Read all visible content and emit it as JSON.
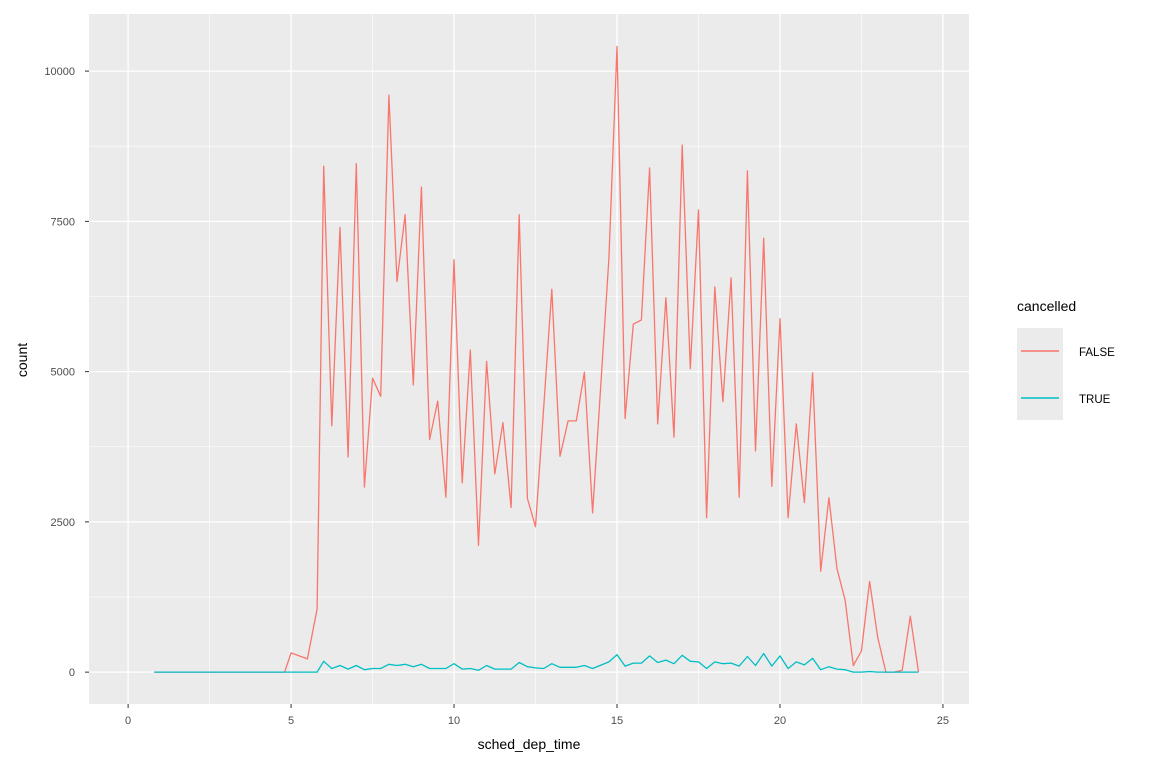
{
  "chart_data": {
    "type": "line",
    "xlabel": "sched_dep_time",
    "ylabel": "count",
    "xlim": [
      -1.2,
      25.8
    ],
    "ylim": [
      -530,
      10950
    ],
    "x_ticks": [
      0,
      5,
      10,
      15,
      20,
      25
    ],
    "x_tick_labels": [
      "0",
      "5",
      "10",
      "15",
      "20",
      "25"
    ],
    "y_ticks": [
      0,
      2500,
      5000,
      7500,
      10000
    ],
    "y_tick_labels": [
      "0",
      "2500",
      "5000",
      "7500",
      "10000"
    ],
    "grid": true,
    "legend": {
      "title": "cancelled",
      "position": "right"
    },
    "series": [
      {
        "name": "FALSE",
        "color": "#F8766D",
        "points": [
          [
            0.8,
            0
          ],
          [
            1.3,
            0
          ],
          [
            2.0,
            0
          ],
          [
            3.0,
            0
          ],
          [
            4.0,
            0
          ],
          [
            4.8,
            0
          ],
          [
            5.0,
            320
          ],
          [
            5.3,
            260
          ],
          [
            5.5,
            220
          ],
          [
            5.8,
            1050
          ],
          [
            6.0,
            8420
          ],
          [
            6.25,
            4100
          ],
          [
            6.5,
            7400
          ],
          [
            6.75,
            3580
          ],
          [
            7.0,
            8460
          ],
          [
            7.25,
            3080
          ],
          [
            7.5,
            4890
          ],
          [
            7.75,
            4590
          ],
          [
            8.0,
            9600
          ],
          [
            8.25,
            6500
          ],
          [
            8.5,
            7610
          ],
          [
            8.75,
            4780
          ],
          [
            9.0,
            8070
          ],
          [
            9.25,
            3870
          ],
          [
            9.5,
            4510
          ],
          [
            9.75,
            2910
          ],
          [
            10.0,
            6860
          ],
          [
            10.25,
            3150
          ],
          [
            10.5,
            5360
          ],
          [
            10.75,
            2110
          ],
          [
            11.0,
            5170
          ],
          [
            11.25,
            3300
          ],
          [
            11.5,
            4150
          ],
          [
            11.75,
            2740
          ],
          [
            12.0,
            7610
          ],
          [
            12.25,
            2890
          ],
          [
            12.5,
            2420
          ],
          [
            13.0,
            6370
          ],
          [
            13.25,
            3590
          ],
          [
            13.5,
            4180
          ],
          [
            13.75,
            4180
          ],
          [
            14.0,
            4990
          ],
          [
            14.25,
            2650
          ],
          [
            14.75,
            6880
          ],
          [
            15.0,
            10410
          ],
          [
            15.25,
            4220
          ],
          [
            15.5,
            5790
          ],
          [
            15.75,
            5860
          ],
          [
            16.0,
            8390
          ],
          [
            16.25,
            4130
          ],
          [
            16.5,
            6230
          ],
          [
            16.75,
            3910
          ],
          [
            17.0,
            8770
          ],
          [
            17.25,
            5050
          ],
          [
            17.5,
            7690
          ],
          [
            17.75,
            2570
          ],
          [
            18.0,
            6410
          ],
          [
            18.25,
            4500
          ],
          [
            18.5,
            6560
          ],
          [
            18.75,
            2910
          ],
          [
            19.0,
            8340
          ],
          [
            19.25,
            3680
          ],
          [
            19.5,
            7220
          ],
          [
            19.75,
            3090
          ],
          [
            20.0,
            5880
          ],
          [
            20.25,
            2570
          ],
          [
            20.5,
            4130
          ],
          [
            20.75,
            2820
          ],
          [
            21.0,
            4980
          ],
          [
            21.25,
            1680
          ],
          [
            21.5,
            2900
          ],
          [
            21.75,
            1720
          ],
          [
            22.0,
            1200
          ],
          [
            22.25,
            110
          ],
          [
            22.5,
            350
          ],
          [
            22.75,
            1510
          ],
          [
            23.0,
            580
          ],
          [
            23.25,
            0
          ],
          [
            23.5,
            0
          ],
          [
            23.75,
            30
          ],
          [
            24.0,
            930
          ],
          [
            24.25,
            0
          ]
        ]
      },
      {
        "name": "TRUE",
        "color": "#00BFC4",
        "points": [
          [
            0.8,
            0
          ],
          [
            1.3,
            0
          ],
          [
            2.0,
            0
          ],
          [
            3.0,
            0
          ],
          [
            4.0,
            0
          ],
          [
            4.8,
            0
          ],
          [
            5.0,
            0
          ],
          [
            5.5,
            0
          ],
          [
            5.8,
            0
          ],
          [
            6.0,
            180
          ],
          [
            6.25,
            60
          ],
          [
            6.5,
            110
          ],
          [
            6.75,
            50
          ],
          [
            7.0,
            110
          ],
          [
            7.25,
            40
          ],
          [
            7.5,
            60
          ],
          [
            7.75,
            60
          ],
          [
            8.0,
            130
          ],
          [
            8.25,
            110
          ],
          [
            8.5,
            130
          ],
          [
            8.75,
            90
          ],
          [
            9.0,
            130
          ],
          [
            9.25,
            60
          ],
          [
            9.5,
            60
          ],
          [
            9.75,
            60
          ],
          [
            10.0,
            140
          ],
          [
            10.25,
            50
          ],
          [
            10.5,
            60
          ],
          [
            10.75,
            30
          ],
          [
            11.0,
            110
          ],
          [
            11.25,
            50
          ],
          [
            11.5,
            50
          ],
          [
            11.75,
            50
          ],
          [
            12.0,
            160
          ],
          [
            12.25,
            90
          ],
          [
            12.5,
            70
          ],
          [
            12.75,
            60
          ],
          [
            13.0,
            140
          ],
          [
            13.25,
            80
          ],
          [
            13.5,
            80
          ],
          [
            13.75,
            80
          ],
          [
            14.0,
            110
          ],
          [
            14.25,
            60
          ],
          [
            14.75,
            170
          ],
          [
            15.0,
            290
          ],
          [
            15.25,
            100
          ],
          [
            15.5,
            150
          ],
          [
            15.75,
            150
          ],
          [
            16.0,
            270
          ],
          [
            16.25,
            160
          ],
          [
            16.5,
            200
          ],
          [
            16.75,
            140
          ],
          [
            17.0,
            280
          ],
          [
            17.25,
            180
          ],
          [
            17.5,
            170
          ],
          [
            17.75,
            60
          ],
          [
            18.0,
            170
          ],
          [
            18.25,
            140
          ],
          [
            18.5,
            150
          ],
          [
            18.75,
            100
          ],
          [
            19.0,
            260
          ],
          [
            19.25,
            110
          ],
          [
            19.5,
            310
          ],
          [
            19.75,
            100
          ],
          [
            20.0,
            270
          ],
          [
            20.25,
            60
          ],
          [
            20.5,
            170
          ],
          [
            20.75,
            120
          ],
          [
            21.0,
            230
          ],
          [
            21.25,
            40
          ],
          [
            21.5,
            90
          ],
          [
            21.75,
            50
          ],
          [
            22.0,
            40
          ],
          [
            22.25,
            0
          ],
          [
            22.5,
            0
          ],
          [
            22.75,
            10
          ],
          [
            23.0,
            0
          ],
          [
            23.25,
            0
          ],
          [
            23.5,
            0
          ],
          [
            23.75,
            0
          ],
          [
            24.0,
            0
          ],
          [
            24.25,
            0
          ]
        ]
      }
    ]
  }
}
